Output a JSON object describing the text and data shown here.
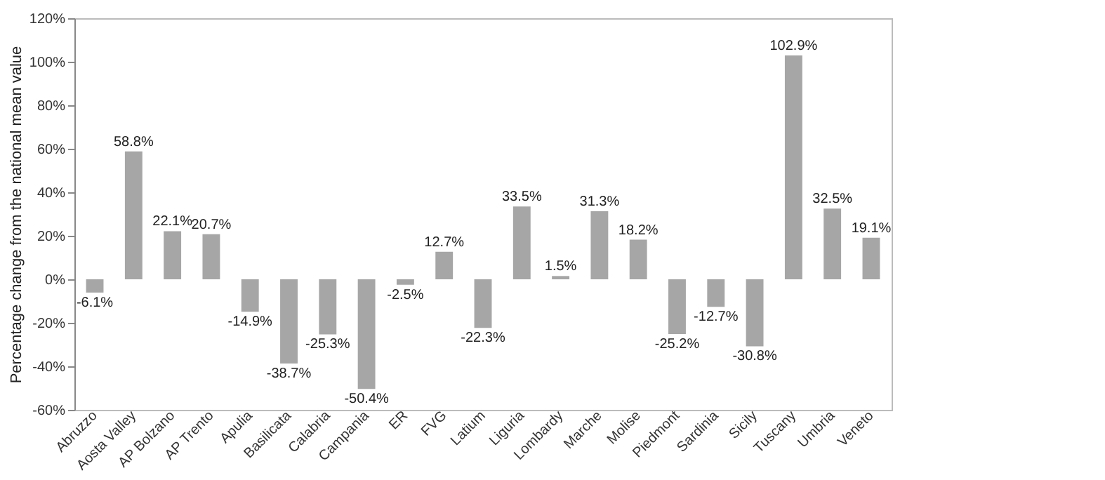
{
  "chart_data": {
    "type": "bar",
    "ylabel": "Percentage change from the national mean value",
    "categories": [
      "Abruzzo",
      "Aosta Valley",
      "AP Bolzano",
      "AP Trento",
      "Apulia",
      "Basilicata",
      "Calabria",
      "Campania",
      "ER",
      "FVG",
      "Latium",
      "Liguria",
      "Lombardy",
      "Marche",
      "Molise",
      "Piedmont",
      "Sardinia",
      "Sicily",
      "Tuscany",
      "Umbria",
      "Veneto"
    ],
    "values": [
      -6.1,
      58.8,
      22.1,
      20.7,
      -14.9,
      -38.7,
      -25.3,
      -50.4,
      -2.5,
      12.7,
      -22.3,
      33.5,
      1.5,
      31.3,
      18.2,
      -25.2,
      -12.7,
      -30.8,
      102.9,
      32.5,
      19.1
    ],
    "value_labels": [
      "-6.1%",
      "58.8%",
      "22.1%",
      "20.7%",
      "-14.9%",
      "-38.7%",
      "-25.3%",
      "-50.4%",
      "-2.5%",
      "12.7%",
      "-22.3%",
      "33.5%",
      "1.5%",
      "31.3%",
      "18.2%",
      "-25.2%",
      "-12.7%",
      "-30.8%",
      "102.9%",
      "32.5%",
      "19.1%"
    ],
    "color": "#a6a6a6",
    "ylim": [
      -60,
      120
    ],
    "yticks": [
      {
        "value": -60,
        "label": "-60%"
      },
      {
        "value": -40,
        "label": "-40%"
      },
      {
        "value": -20,
        "label": "-20%"
      },
      {
        "value": 0,
        "label": "0%"
      },
      {
        "value": 20,
        "label": "20%"
      },
      {
        "value": 40,
        "label": "40%"
      },
      {
        "value": 60,
        "label": "60%"
      },
      {
        "value": 80,
        "label": "80%"
      },
      {
        "value": 100,
        "label": "100%"
      },
      {
        "value": 120,
        "label": "120%"
      }
    ],
    "grid": false
  }
}
